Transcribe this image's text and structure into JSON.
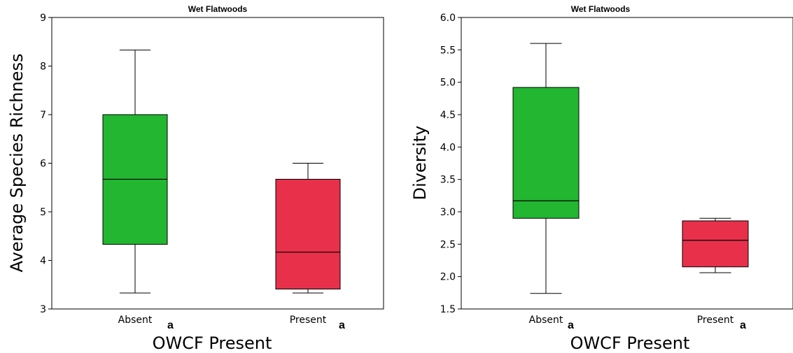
{
  "chart_data": [
    {
      "type": "box",
      "title": "Wet Flatwoods",
      "xlabel": "OWCF Present",
      "ylabel": "Average Species Richness",
      "ylim": [
        3,
        9
      ],
      "yticks": [
        "3",
        "4",
        "5",
        "6",
        "7",
        "8",
        "9"
      ],
      "categories": [
        "Absent",
        "Present"
      ],
      "significance_letters": [
        "a",
        "a"
      ],
      "boxes": [
        {
          "category": "Absent",
          "min": 3.33,
          "q1": 4.33,
          "median": 5.67,
          "q3": 7.0,
          "max": 8.33,
          "color": "#22b631"
        },
        {
          "category": "Present",
          "min": 3.33,
          "q1": 3.41,
          "median": 4.17,
          "q3": 5.67,
          "max": 6.0,
          "color": "#e8304a"
        }
      ]
    },
    {
      "type": "box",
      "title": "Wet Flatwoods",
      "xlabel": "OWCF Present",
      "ylabel": "Diversity",
      "ylim": [
        1.5,
        6.0
      ],
      "yticks": [
        "1.5",
        "2.0",
        "2.5",
        "3.0",
        "3.5",
        "4.0",
        "4.5",
        "5.0",
        "5.5",
        "6.0"
      ],
      "categories": [
        "Absent",
        "Present"
      ],
      "significance_letters": [
        "a",
        "a"
      ],
      "boxes": [
        {
          "category": "Absent",
          "min": 1.74,
          "q1": 2.9,
          "median": 3.17,
          "q3": 4.92,
          "max": 5.6,
          "color": "#22b631"
        },
        {
          "category": "Present",
          "min": 2.06,
          "q1": 2.15,
          "median": 2.56,
          "q3": 2.86,
          "max": 2.9,
          "color": "#e8304a"
        }
      ]
    }
  ]
}
